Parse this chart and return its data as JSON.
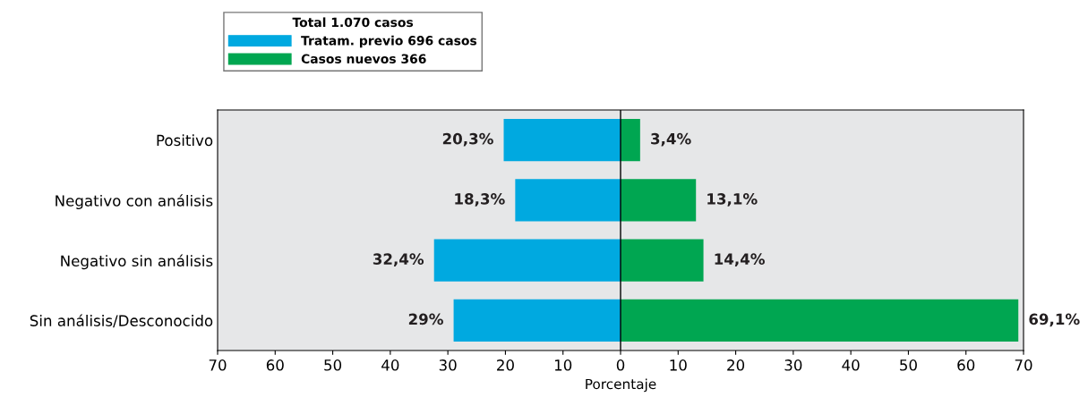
{
  "chart_data": {
    "type": "bar",
    "orientation": "horizontal",
    "xlabel": "Porcentaje",
    "legend_title": "Total 1.070 casos",
    "categories": [
      "Positivo",
      "Negativo con análisis",
      "Negativo sin análisis",
      "Sin análisis/Desconocido"
    ],
    "series": [
      {
        "name": "Tratam. previo 696 casos",
        "color": "#00a9e0",
        "base": [
          -20.3,
          -18.3,
          -32.4,
          -29
        ],
        "values": [
          20.3,
          18.3,
          32.4,
          29
        ],
        "value_labels": [
          "20,3%",
          "18,3%",
          "32,4%",
          "29%"
        ]
      },
      {
        "name": "Casos nuevos 366",
        "color": "#00a651",
        "values": [
          3.4,
          13.1,
          14.4,
          69.1
        ],
        "value_labels": [
          "3,4%",
          "13,1%",
          "14,4%",
          "69,1%"
        ]
      }
    ],
    "xlim": [
      -70,
      70
    ],
    "xticks": [
      {
        "value": -70,
        "label": "70"
      },
      {
        "value": -60,
        "label": "60"
      },
      {
        "value": -50,
        "label": "50"
      },
      {
        "value": -40,
        "label": "40"
      },
      {
        "value": -30,
        "label": "30"
      },
      {
        "value": -20,
        "label": "20"
      },
      {
        "value": -10,
        "label": "10"
      },
      0,
      10,
      20,
      30,
      40,
      50,
      60,
      70
    ],
    "ref_lines": [
      {
        "axis": "x",
        "value": 0,
        "color": "#000000"
      }
    ],
    "grid": false,
    "legend": "top left"
  }
}
